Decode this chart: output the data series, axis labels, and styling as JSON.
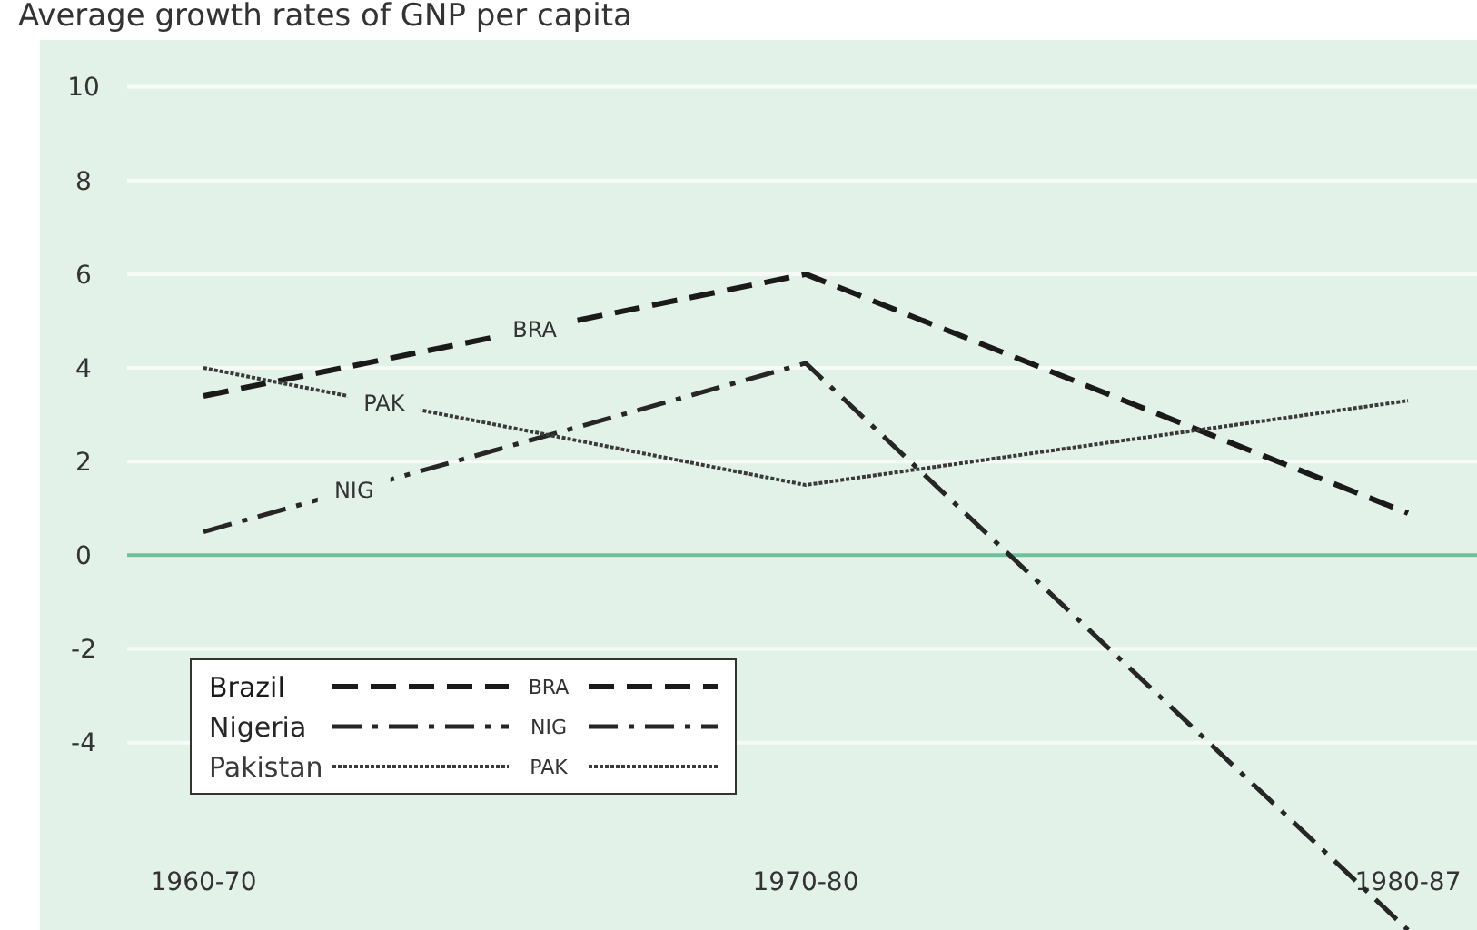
{
  "chart_data": {
    "type": "line",
    "title": "Average growth rates of GNP per capita",
    "categories": [
      "1960-70",
      "1970-80",
      "1980-87"
    ],
    "series": [
      {
        "name": "Brazil",
        "color": "#1a1a1a",
        "values": [
          3.4,
          6.0,
          0.9
        ],
        "line_style": "dashed"
      },
      {
        "name": "Nigeria",
        "color": "#262626",
        "values": [
          0.5,
          4.1,
          -8.0
        ],
        "line_style": "dashdot"
      },
      {
        "name": "Pakistan",
        "color": "#3a3a3a",
        "values": [
          4.0,
          1.5,
          3.3
        ],
        "line_style": "dotted"
      }
    ],
    "annotations": [
      "BRA",
      "NIG",
      "PAK"
    ],
    "ylim": [
      -8,
      11
    ],
    "yticks": [
      -4,
      -2,
      0,
      2,
      4,
      6,
      8,
      10
    ],
    "ref_lines": [
      {
        "axis": "y",
        "value": 0,
        "color": "#6fbf9a"
      }
    ],
    "grid": "y",
    "legend": "bottom left",
    "marker": "none"
  }
}
